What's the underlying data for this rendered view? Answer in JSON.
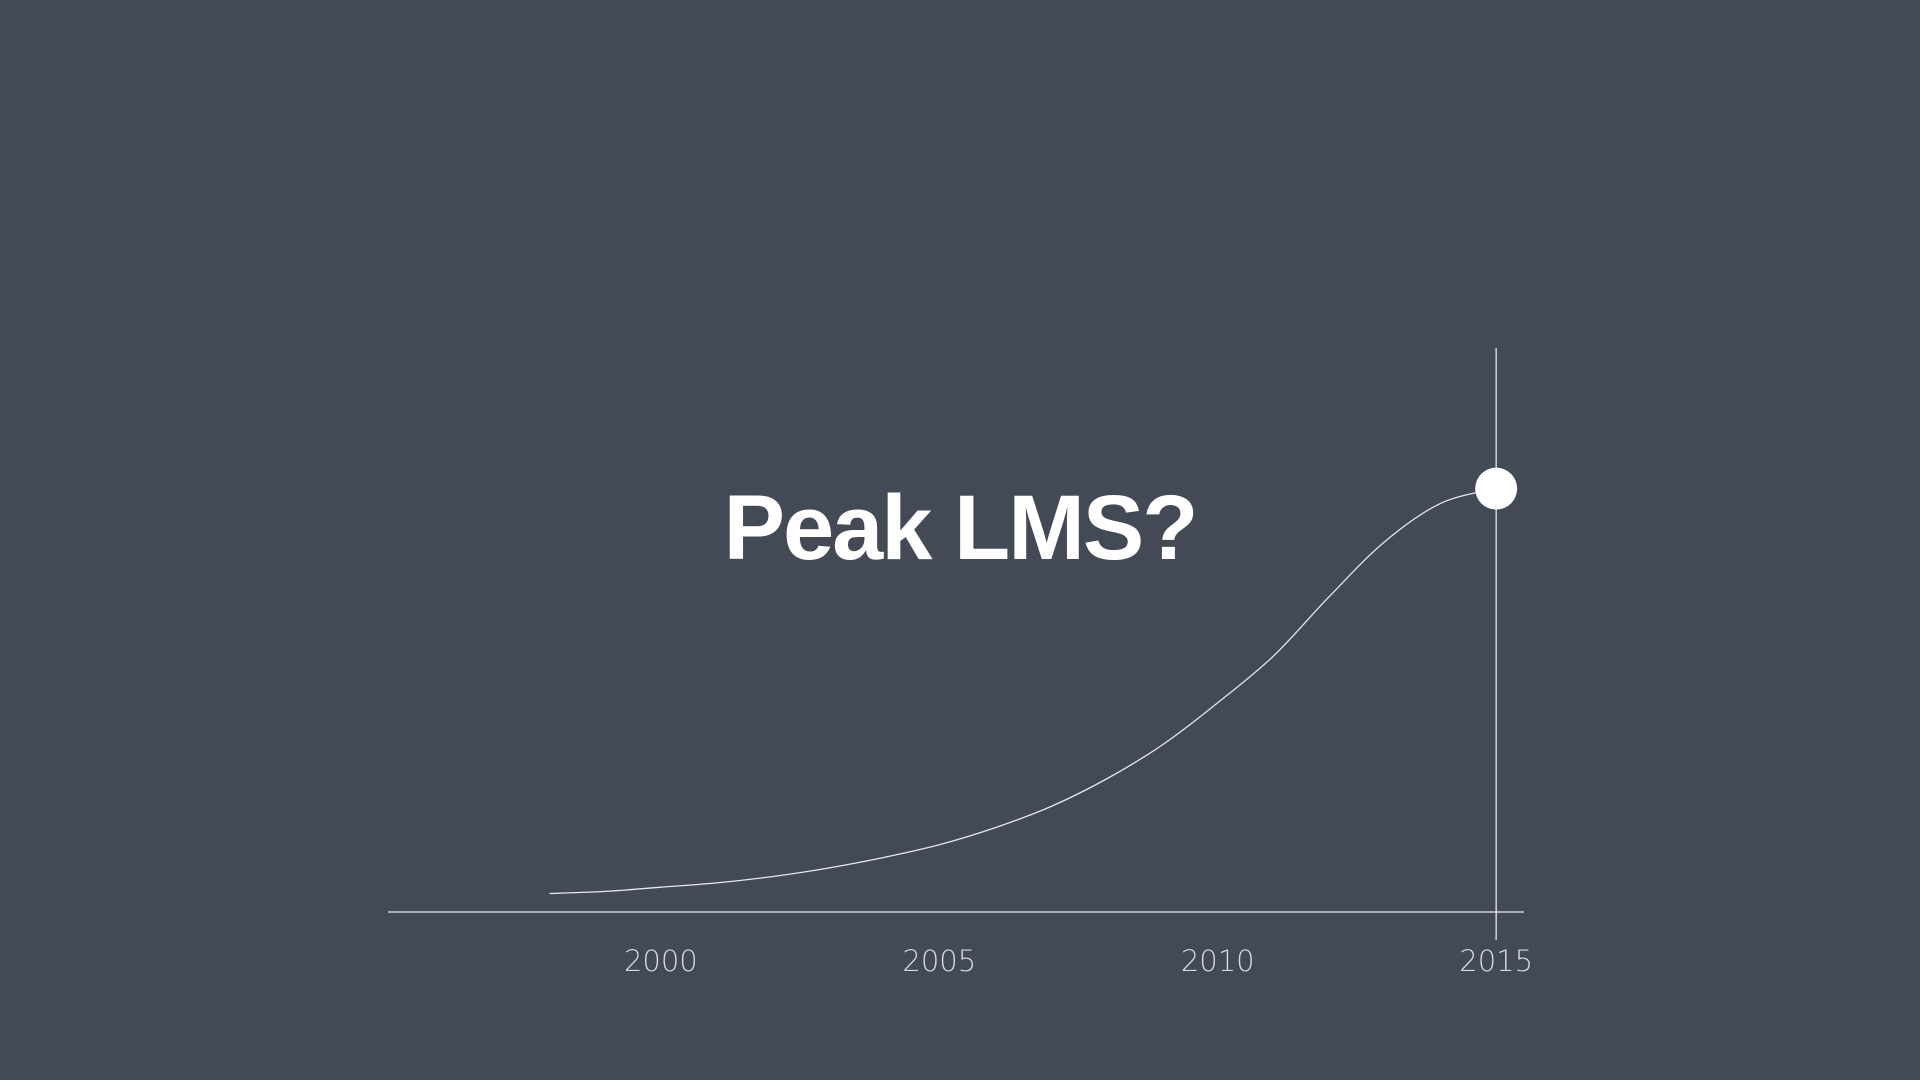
{
  "title": "Peak LMS?",
  "colors": {
    "background": "#434955",
    "line": "#e6e7ea",
    "marker": "#ffffff",
    "text": "#ffffff"
  },
  "chart_data": {
    "type": "line",
    "title": "Peak LMS?",
    "xlabel": "",
    "ylabel": "",
    "x_ticks": [
      2000,
      2005,
      2010,
      2015
    ],
    "tick_labels": [
      "2000",
      "2005",
      "2010",
      "2015"
    ],
    "xlim": [
      1995.1,
      2015.5
    ],
    "ylim": [
      0,
      1
    ],
    "grid": false,
    "legend": "none",
    "series": [
      {
        "x": [
          1998,
          1999,
          2000,
          2001,
          2002,
          2003,
          2004,
          2005,
          2006,
          2007,
          2008,
          2009,
          2010,
          2011,
          2012,
          2013,
          2014,
          2015
        ],
        "values": [
          0.02,
          0.025,
          0.035,
          0.045,
          0.06,
          0.08,
          0.105,
          0.135,
          0.175,
          0.225,
          0.29,
          0.37,
          0.47,
          0.58,
          0.72,
          0.85,
          0.94,
          0.975
        ]
      }
    ],
    "highlight_point": {
      "x": 2015,
      "y": 0.975
    },
    "reference_line_x": 2015
  }
}
